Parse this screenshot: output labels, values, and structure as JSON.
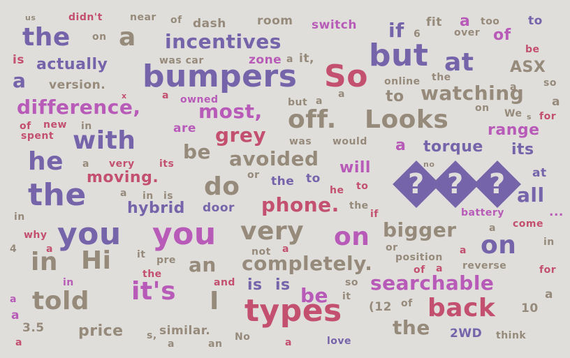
{
  "words": [
    "us",
    "didn't",
    "near",
    "of",
    "dash",
    "room",
    "switch",
    "a",
    "too",
    "to",
    "the",
    "on",
    "a",
    "incentives",
    "if",
    "6",
    "fit",
    "over",
    "of",
    "be",
    "is",
    "actually",
    "was car",
    "zone",
    "a",
    "it,",
    "but",
    "at",
    "ASX",
    "a",
    "bumpers",
    "So",
    "online",
    "the",
    "a",
    "so",
    "version.",
    "a",
    "to",
    "watching",
    "a",
    "x",
    "a",
    "owned",
    "but",
    "a",
    "difference,",
    "most,",
    "off.",
    "Looks",
    "on",
    "We",
    "s",
    "for",
    "of",
    "new",
    "in",
    "spent",
    "are",
    "range",
    "with",
    "grey",
    "was",
    "would",
    "a",
    "torque",
    "its",
    "he",
    "a",
    "very",
    "its",
    "be",
    "avoided",
    "will",
    "no",
    "moving.",
    "or",
    "at",
    "the",
    "do",
    "the",
    "to",
    "he",
    "to",
    "a",
    "in",
    "is",
    "all",
    "hybrid",
    "door",
    "phone.",
    "the",
    "if",
    "battery",
    "in",
    "...",
    "why",
    "you",
    "you",
    "very",
    "on",
    "bigger",
    "a",
    "come",
    "4",
    "a",
    "not",
    "a",
    "or",
    "a",
    "on",
    "in",
    "in",
    "Hi",
    "it",
    "pre",
    "an",
    "completely.",
    "position",
    "of",
    "a",
    "reverse",
    "for",
    "the",
    "and",
    "is",
    "is",
    "so",
    "searchable",
    "in",
    "it's",
    "be",
    "it",
    "a",
    "a",
    "told",
    "I",
    "types",
    "(12",
    "of",
    "back",
    "10",
    "a",
    "3.5",
    "price",
    "s,",
    "similar.",
    "No",
    "a",
    "love",
    "the",
    "2WD",
    "think",
    "a",
    "a",
    "an"
  ],
  "unknown_glyph_count": 3,
  "colors": {
    "background": "#e0dedb",
    "purple": "#7664ab",
    "crimson": "#c2506e",
    "taupe": "#968a7b",
    "magenta": "#b85bb8"
  }
}
